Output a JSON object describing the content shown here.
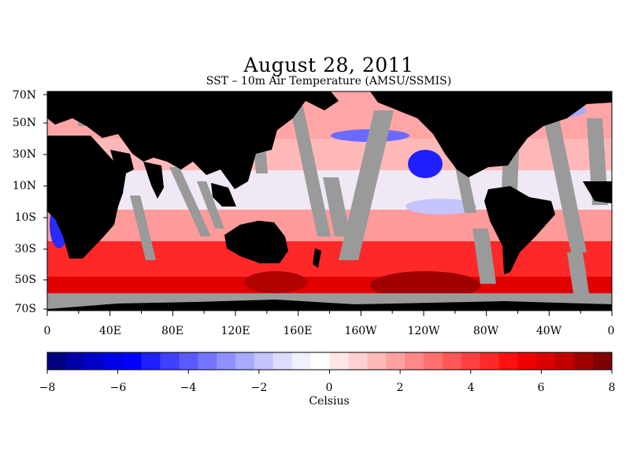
{
  "title": "August 28, 2011",
  "subtitle": "SST – 10m Air Temperature (AMSU/SSMIS)",
  "colors": {
    "land": "#000000",
    "no_data": "#9a9a9a",
    "neutral": "#f4eeee"
  },
  "map": {
    "lat_labels": [
      "70N",
      "50N",
      "30N",
      "10N",
      "10S",
      "30S",
      "50S",
      "70S"
    ],
    "lon_labels": [
      "0",
      "40E",
      "80E",
      "120E",
      "160E",
      "160W",
      "120W",
      "80W",
      "40W",
      "0"
    ],
    "lat_range": [
      -75,
      70
    ],
    "lon_range": [
      0,
      360
    ]
  },
  "colorbar": {
    "min": -8,
    "max": 8,
    "tick_labels": [
      "−8",
      "−6",
      "−4",
      "−2",
      "0",
      "2",
      "4",
      "6",
      "8"
    ],
    "unit_label": "Celsius",
    "colors": [
      "#000080",
      "#0000a8",
      "#0000c8",
      "#0000e6",
      "#0000ff",
      "#2020ff",
      "#4040ff",
      "#5a5aff",
      "#7474ff",
      "#9090ff",
      "#aaaaff",
      "#c4c4ff",
      "#dcdcff",
      "#f0f0ff",
      "#ffffff",
      "#ffe6e6",
      "#ffd0d0",
      "#ffb8b8",
      "#ffa0a0",
      "#ff8888",
      "#ff7070",
      "#ff5858",
      "#ff4040",
      "#ff2828",
      "#ff1010",
      "#f00000",
      "#d80000",
      "#c00000",
      "#a00000",
      "#800000"
    ]
  }
}
